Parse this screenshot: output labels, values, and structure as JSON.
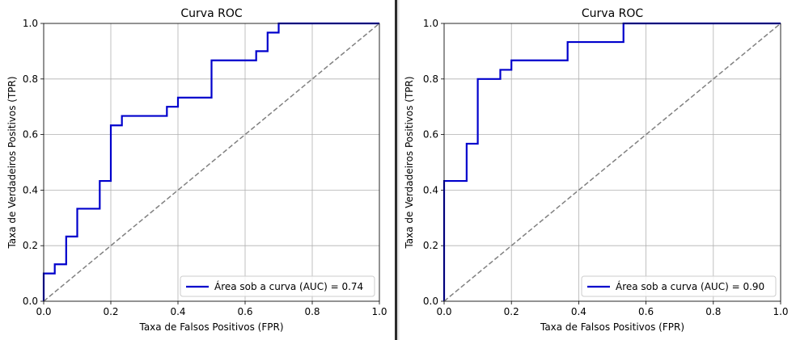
{
  "chart_data": [
    {
      "type": "line",
      "title": "Curva ROC",
      "xlabel": "Taxa de Falsos Positivos (FPR)",
      "ylabel": "Taxa de Verdadeiros Positivos (TPR)",
      "xlim": [
        0.0,
        1.0
      ],
      "ylim": [
        0.0,
        1.0
      ],
      "xticks": [
        "0.0",
        "0.2",
        "0.4",
        "0.6",
        "0.8",
        "1.0"
      ],
      "yticks": [
        "0.0",
        "0.2",
        "0.4",
        "0.6",
        "0.8",
        "1.0"
      ],
      "grid": true,
      "legend_position": "lower-right",
      "series": [
        {
          "name": "Área sob a curva (AUC) = 0.74",
          "color": "#0000cc",
          "style": "step",
          "x": [
            0.0,
            0.0,
            0.033,
            0.033,
            0.067,
            0.067,
            0.1,
            0.1,
            0.167,
            0.167,
            0.2,
            0.2,
            0.233,
            0.233,
            0.367,
            0.367,
            0.4,
            0.4,
            0.5,
            0.5,
            0.633,
            0.633,
            0.667,
            0.667,
            0.7,
            0.7,
            1.0
          ],
          "y": [
            0.0,
            0.1,
            0.1,
            0.133,
            0.133,
            0.233,
            0.233,
            0.333,
            0.333,
            0.433,
            0.433,
            0.633,
            0.633,
            0.667,
            0.667,
            0.7,
            0.7,
            0.733,
            0.733,
            0.867,
            0.867,
            0.9,
            0.9,
            0.967,
            0.967,
            1.0,
            1.0
          ]
        },
        {
          "name": "",
          "color": "#808080",
          "style": "dashed",
          "x": [
            0.0,
            1.0
          ],
          "y": [
            0.0,
            1.0
          ]
        }
      ]
    },
    {
      "type": "line",
      "title": "Curva ROC",
      "xlabel": "Taxa de Falsos Positivos (FPR)",
      "ylabel": "Taxa de Verdadeiros Positivos (TPR)",
      "xlim": [
        0.0,
        1.0
      ],
      "ylim": [
        0.0,
        1.0
      ],
      "xticks": [
        "0.0",
        "0.2",
        "0.4",
        "0.6",
        "0.8",
        "1.0"
      ],
      "yticks": [
        "0.0",
        "0.2",
        "0.4",
        "0.6",
        "0.8",
        "1.0"
      ],
      "grid": true,
      "legend_position": "lower-right",
      "series": [
        {
          "name": "Área sob a curva (AUC) = 0.90",
          "color": "#0000cc",
          "style": "step",
          "x": [
            0.0,
            0.0,
            0.067,
            0.067,
            0.1,
            0.1,
            0.167,
            0.167,
            0.2,
            0.2,
            0.367,
            0.367,
            0.533,
            0.533,
            1.0
          ],
          "y": [
            0.0,
            0.433,
            0.433,
            0.567,
            0.567,
            0.8,
            0.8,
            0.833,
            0.833,
            0.867,
            0.867,
            0.933,
            0.933,
            1.0,
            1.0
          ]
        },
        {
          "name": "",
          "color": "#808080",
          "style": "dashed",
          "x": [
            0.0,
            1.0
          ],
          "y": [
            0.0,
            1.0
          ]
        }
      ]
    }
  ]
}
